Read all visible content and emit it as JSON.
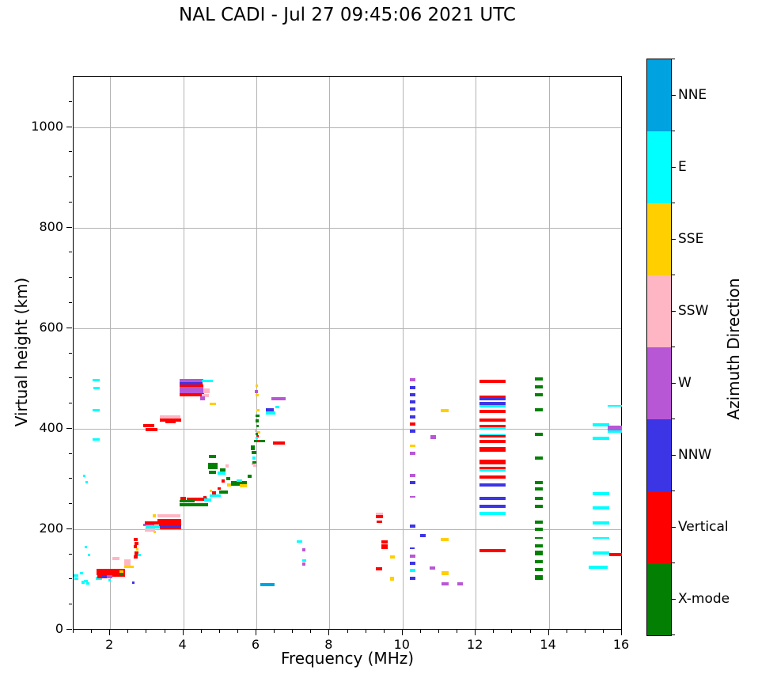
{
  "chart_data": {
    "type": "scatter",
    "title": "NAL CADI - Jul 27 09:45:06 2021 UTC",
    "xlabel": "Frequency (MHz)",
    "ylabel": "Virtual height (km)",
    "xlim": [
      1,
      16
    ],
    "ylim": [
      0,
      1100
    ],
    "xticks": [
      2,
      4,
      6,
      8,
      10,
      12,
      14,
      16
    ],
    "yticks": [
      0,
      200,
      400,
      600,
      800,
      1000
    ],
    "x_minor_step": 0.5,
    "y_minor_step": 50,
    "grid": true,
    "legend_position": "right-colorbar",
    "colorbar": {
      "label": "Azimuth Direction",
      "categories": [
        {
          "key": "NNE",
          "label": "NNE",
          "color": "#00A3E0"
        },
        {
          "key": "E",
          "label": "E",
          "color": "#00FFFF"
        },
        {
          "key": "SSE",
          "label": "SSE",
          "color": "#FFCF00"
        },
        {
          "key": "SSW",
          "label": "SSW",
          "color": "#FFB6C4"
        },
        {
          "key": "W",
          "label": "W",
          "color": "#B857D6"
        },
        {
          "key": "NNW",
          "label": "NNW",
          "color": "#3C35E5"
        },
        {
          "key": "V",
          "label": "Vertical",
          "color": "#FF0000"
        },
        {
          "key": "X",
          "label": "X-mode",
          "color": "#038003"
        }
      ]
    },
    "point_format": [
      "category",
      "freq_start_MHz",
      "freq_width_MHz",
      "virtual_height_km",
      "thickness_px"
    ],
    "points": [
      [
        "E",
        1.0,
        0.12,
        108,
        3
      ],
      [
        "E",
        1.02,
        0.1,
        101,
        3
      ],
      [
        "E",
        1.17,
        0.09,
        113,
        3
      ],
      [
        "E",
        1.21,
        0.1,
        95,
        4
      ],
      [
        "E",
        1.28,
        0.12,
        97,
        3
      ],
      [
        "E",
        1.35,
        0.08,
        92,
        3
      ],
      [
        "E",
        1.3,
        0.06,
        164,
        3
      ],
      [
        "E",
        1.4,
        0.06,
        148,
        3
      ],
      [
        "E",
        1.26,
        0.06,
        306,
        3
      ],
      [
        "E",
        1.32,
        0.06,
        293,
        3
      ],
      [
        "E",
        1.53,
        0.18,
        497,
        3
      ],
      [
        "E",
        1.55,
        0.16,
        480,
        3
      ],
      [
        "E",
        1.53,
        0.18,
        437,
        3
      ],
      [
        "E",
        1.53,
        0.18,
        378,
        3
      ],
      [
        "E",
        1.6,
        0.18,
        103,
        4
      ],
      [
        "V",
        1.62,
        0.78,
        118,
        5
      ],
      [
        "V",
        1.62,
        0.78,
        112,
        5
      ],
      [
        "V",
        1.66,
        0.38,
        106,
        4
      ],
      [
        "V",
        2.0,
        0.4,
        109,
        4
      ],
      [
        "NNW",
        1.78,
        0.13,
        107,
        3
      ],
      [
        "W",
        1.9,
        0.17,
        105,
        4
      ],
      [
        "E",
        1.95,
        0.06,
        99,
        3
      ],
      [
        "SSE",
        2.25,
        0.12,
        116,
        3
      ],
      [
        "X",
        2.27,
        0.07,
        111,
        3
      ],
      [
        "SSW",
        2.05,
        0.2,
        142,
        4
      ],
      [
        "SSW",
        2.38,
        0.17,
        135,
        6
      ],
      [
        "SSW",
        2.38,
        0.17,
        128,
        5
      ],
      [
        "SSE",
        2.38,
        0.27,
        125,
        3
      ],
      [
        "V",
        2.64,
        0.12,
        180,
        4
      ],
      [
        "V",
        2.66,
        0.12,
        172,
        4
      ],
      [
        "V",
        2.64,
        0.1,
        165,
        4
      ],
      [
        "V",
        2.67,
        0.1,
        152,
        5
      ],
      [
        "V",
        2.64,
        0.12,
        144,
        4
      ],
      [
        "SSE",
        2.7,
        0.08,
        159,
        3
      ],
      [
        "E",
        2.76,
        0.07,
        148,
        3
      ],
      [
        "NNW",
        2.6,
        0.06,
        94,
        3
      ],
      [
        "W",
        2.9,
        0.3,
        209,
        3
      ],
      [
        "E",
        2.97,
        0.4,
        204,
        4
      ],
      [
        "SSW",
        2.94,
        0.3,
        199,
        4
      ],
      [
        "V",
        2.95,
        0.55,
        212,
        4
      ],
      [
        "SSE",
        3.17,
        0.08,
        226,
        4
      ],
      [
        "SSE",
        3.18,
        0.07,
        194,
        3
      ],
      [
        "SSW",
        3.3,
        0.62,
        226,
        4
      ],
      [
        "V",
        3.3,
        0.64,
        217,
        5
      ],
      [
        "V",
        3.33,
        0.62,
        210,
        4
      ],
      [
        "NNW",
        3.35,
        0.6,
        206,
        3
      ],
      [
        "V",
        3.35,
        0.6,
        202,
        3
      ],
      [
        "V",
        2.9,
        0.3,
        406,
        4
      ],
      [
        "V",
        2.97,
        0.33,
        398,
        4
      ],
      [
        "SSW",
        3.35,
        0.58,
        423,
        4
      ],
      [
        "V",
        3.35,
        0.6,
        417,
        4
      ],
      [
        "V",
        3.5,
        0.3,
        413,
        3
      ],
      [
        "W",
        3.9,
        0.65,
        496,
        4
      ],
      [
        "E",
        4.5,
        0.3,
        495,
        3
      ],
      [
        "NNW",
        3.9,
        0.62,
        489,
        5
      ],
      [
        "V",
        3.9,
        0.64,
        485,
        3
      ],
      [
        "W",
        3.9,
        0.66,
        478,
        7
      ],
      [
        "W",
        3.9,
        0.68,
        471,
        4
      ],
      [
        "V",
        3.9,
        0.68,
        467,
        4
      ],
      [
        "SSW",
        4.55,
        0.18,
        476,
        6
      ],
      [
        "SSW",
        4.5,
        0.2,
        466,
        4
      ],
      [
        "W",
        4.47,
        0.12,
        460,
        5
      ],
      [
        "V",
        4.45,
        0.08,
        487,
        3
      ],
      [
        "SSE",
        4.73,
        0.17,
        450,
        3
      ],
      [
        "V",
        3.92,
        0.15,
        262,
        4
      ],
      [
        "V",
        4.1,
        0.55,
        259,
        4
      ],
      [
        "X",
        3.9,
        0.42,
        255,
        3
      ],
      [
        "X",
        3.9,
        0.78,
        249,
        4
      ],
      [
        "E",
        4.57,
        0.2,
        258,
        4
      ],
      [
        "V",
        4.55,
        0.08,
        263,
        3
      ],
      [
        "E",
        4.73,
        0.3,
        267,
        3
      ],
      [
        "V",
        4.78,
        0.12,
        272,
        4
      ],
      [
        "SSE",
        4.72,
        0.07,
        276,
        3
      ],
      [
        "X",
        4.98,
        0.25,
        274,
        4
      ],
      [
        "V",
        4.95,
        0.07,
        281,
        3
      ],
      [
        "X",
        4.7,
        0.2,
        345,
        4
      ],
      [
        "X",
        4.68,
        0.25,
        325,
        8
      ],
      [
        "X",
        4.7,
        0.2,
        313,
        4
      ],
      [
        "X",
        5.0,
        0.15,
        318,
        4
      ],
      [
        "E",
        4.95,
        0.2,
        311,
        4
      ],
      [
        "SSW",
        5.15,
        0.1,
        325,
        4
      ],
      [
        "V",
        5.05,
        0.08,
        296,
        4
      ],
      [
        "X",
        5.17,
        0.12,
        300,
        4
      ],
      [
        "SSE",
        5.2,
        0.1,
        288,
        4
      ],
      [
        "X",
        5.3,
        0.45,
        291,
        6
      ],
      [
        "SSE",
        5.55,
        0.2,
        286,
        4
      ],
      [
        "E",
        5.45,
        0.15,
        296,
        3
      ],
      [
        "X",
        5.77,
        0.1,
        306,
        4
      ],
      [
        "SSW",
        5.88,
        0.08,
        330,
        3
      ],
      [
        "X",
        5.85,
        0.1,
        362,
        6
      ],
      [
        "X",
        5.87,
        0.12,
        352,
        4
      ],
      [
        "E",
        5.9,
        0.08,
        341,
        4
      ],
      [
        "X",
        5.9,
        0.1,
        333,
        3
      ],
      [
        "SSW",
        5.92,
        0.08,
        327,
        3
      ],
      [
        "X",
        5.93,
        0.3,
        375,
        3
      ],
      [
        "X",
        5.98,
        0.1,
        425,
        3
      ],
      [
        "X",
        5.98,
        0.08,
        415,
        4
      ],
      [
        "X",
        5.99,
        0.07,
        405,
        3
      ],
      [
        "SSE",
        5.97,
        0.08,
        486,
        3
      ],
      [
        "W",
        5.95,
        0.1,
        473,
        4
      ],
      [
        "SSE",
        5.98,
        0.08,
        466,
        3
      ],
      [
        "SSE",
        6.0,
        0.08,
        436,
        3
      ],
      [
        "SSW",
        5.95,
        0.06,
        396,
        3
      ],
      [
        "SSE",
        6.02,
        0.08,
        393,
        3
      ],
      [
        "V",
        6.0,
        0.06,
        385,
        3
      ],
      [
        "X",
        5.97,
        0.08,
        389,
        3
      ],
      [
        "E",
        5.98,
        0.07,
        381,
        3
      ],
      [
        "V",
        6.02,
        0.06,
        376,
        3
      ],
      [
        "NNW",
        6.25,
        0.22,
        437,
        4
      ],
      [
        "E",
        6.27,
        0.25,
        431,
        4
      ],
      [
        "E",
        6.52,
        0.1,
        443,
        3
      ],
      [
        "W",
        6.42,
        0.38,
        459,
        4
      ],
      [
        "V",
        6.45,
        0.33,
        371,
        4
      ],
      [
        "NNE",
        6.1,
        0.4,
        90,
        4
      ],
      [
        "E",
        7.1,
        0.16,
        176,
        3
      ],
      [
        "W",
        7.26,
        0.08,
        159,
        4
      ],
      [
        "E",
        7.26,
        0.1,
        138,
        3
      ],
      [
        "W",
        7.25,
        0.1,
        131,
        4
      ],
      [
        "SSW",
        9.26,
        0.2,
        230,
        3
      ],
      [
        "V",
        9.26,
        0.2,
        225,
        4
      ],
      [
        "V",
        9.28,
        0.17,
        215,
        3
      ],
      [
        "V",
        9.42,
        0.17,
        175,
        4
      ],
      [
        "V",
        9.42,
        0.18,
        166,
        6
      ],
      [
        "SSE",
        9.65,
        0.14,
        145,
        4
      ],
      [
        "V",
        9.26,
        0.18,
        121,
        4
      ],
      [
        "SSE",
        9.65,
        0.12,
        102,
        5
      ],
      [
        "W",
        10.2,
        0.16,
        497,
        4
      ],
      [
        "NNW",
        10.2,
        0.16,
        482,
        4
      ],
      [
        "NNW",
        10.2,
        0.16,
        468,
        4
      ],
      [
        "NNW",
        10.2,
        0.16,
        453,
        4
      ],
      [
        "NNW",
        10.2,
        0.16,
        439,
        4
      ],
      [
        "NNW",
        10.2,
        0.16,
        424,
        4
      ],
      [
        "V",
        10.2,
        0.16,
        409,
        4
      ],
      [
        "NNW",
        10.2,
        0.16,
        395,
        4
      ],
      [
        "SSE",
        10.2,
        0.16,
        366,
        3
      ],
      [
        "W",
        10.2,
        0.16,
        351,
        4
      ],
      [
        "W",
        10.2,
        0.16,
        307,
        4
      ],
      [
        "NNW",
        10.2,
        0.16,
        293,
        4
      ],
      [
        "W",
        10.2,
        0.15,
        264,
        2
      ],
      [
        "NNW",
        10.2,
        0.16,
        206,
        4
      ],
      [
        "NNW",
        10.2,
        0.12,
        162,
        2
      ],
      [
        "W",
        10.2,
        0.15,
        147,
        4
      ],
      [
        "NNW",
        10.2,
        0.16,
        132,
        4
      ],
      [
        "E",
        10.2,
        0.16,
        118,
        4
      ],
      [
        "NNW",
        10.2,
        0.16,
        103,
        4
      ],
      [
        "NNW",
        10.48,
        0.16,
        187,
        4
      ],
      [
        "W",
        10.76,
        0.16,
        383,
        5
      ],
      [
        "W",
        10.75,
        0.15,
        122,
        4
      ],
      [
        "SSE",
        11.05,
        0.22,
        436,
        4
      ],
      [
        "SSE",
        11.05,
        0.22,
        179,
        4
      ],
      [
        "SSE",
        11.07,
        0.2,
        112,
        5
      ],
      [
        "W",
        11.07,
        0.2,
        91,
        4
      ],
      [
        "W",
        11.5,
        0.14,
        91,
        4
      ],
      [
        "V",
        12.1,
        0.72,
        494,
        4
      ],
      [
        "V",
        12.1,
        0.72,
        463,
        4
      ],
      [
        "NNW",
        12.1,
        0.72,
        459,
        3
      ],
      [
        "NNW",
        12.1,
        0.72,
        449,
        5
      ],
      [
        "E",
        12.1,
        0.72,
        444,
        3
      ],
      [
        "V",
        12.1,
        0.72,
        434,
        4
      ],
      [
        "V",
        12.1,
        0.72,
        417,
        4
      ],
      [
        "V",
        12.1,
        0.72,
        405,
        3
      ],
      [
        "E",
        12.1,
        0.72,
        401,
        3
      ],
      [
        "E",
        12.1,
        0.72,
        387,
        3
      ],
      [
        "V",
        12.1,
        0.72,
        384,
        3
      ],
      [
        "V",
        12.1,
        0.72,
        375,
        4
      ],
      [
        "V",
        12.1,
        0.72,
        359,
        6
      ],
      [
        "V",
        12.1,
        0.72,
        333,
        6
      ],
      [
        "V",
        12.1,
        0.72,
        321,
        4
      ],
      [
        "E",
        12.1,
        0.72,
        317,
        3
      ],
      [
        "V",
        12.1,
        0.72,
        303,
        4
      ],
      [
        "NNW",
        12.1,
        0.72,
        288,
        4
      ],
      [
        "NNW",
        12.1,
        0.72,
        261,
        4
      ],
      [
        "NNW",
        12.1,
        0.72,
        245,
        4
      ],
      [
        "E",
        12.1,
        0.72,
        232,
        4
      ],
      [
        "V",
        12.1,
        0.72,
        158,
        4
      ],
      [
        "X",
        13.62,
        0.22,
        499,
        4
      ],
      [
        "X",
        13.62,
        0.22,
        483,
        4
      ],
      [
        "X",
        13.62,
        0.22,
        468,
        4
      ],
      [
        "X",
        13.62,
        0.22,
        437,
        4
      ],
      [
        "X",
        13.62,
        0.22,
        389,
        4
      ],
      [
        "X",
        13.62,
        0.22,
        341,
        4
      ],
      [
        "X",
        13.62,
        0.22,
        293,
        4
      ],
      [
        "X",
        13.62,
        0.22,
        280,
        4
      ],
      [
        "X",
        13.62,
        0.22,
        262,
        4
      ],
      [
        "X",
        13.62,
        0.22,
        246,
        4
      ],
      [
        "X",
        13.62,
        0.22,
        214,
        4
      ],
      [
        "X",
        13.62,
        0.22,
        200,
        4
      ],
      [
        "X",
        13.62,
        0.22,
        182,
        2
      ],
      [
        "X",
        13.62,
        0.22,
        167,
        4
      ],
      [
        "X",
        13.62,
        0.22,
        152,
        6
      ],
      [
        "X",
        13.62,
        0.22,
        135,
        4
      ],
      [
        "X",
        13.62,
        0.22,
        120,
        4
      ],
      [
        "X",
        13.62,
        0.22,
        104,
        6
      ],
      [
        "E",
        15.62,
        0.38,
        445,
        2
      ],
      [
        "E",
        15.2,
        0.45,
        408,
        4
      ],
      [
        "W",
        15.62,
        0.38,
        404,
        3
      ],
      [
        "W",
        15.62,
        0.38,
        398,
        5
      ],
      [
        "E",
        15.62,
        0.38,
        394,
        3
      ],
      [
        "E",
        15.2,
        0.45,
        381,
        4
      ],
      [
        "E",
        15.2,
        0.45,
        270,
        4
      ],
      [
        "E",
        15.2,
        0.45,
        242,
        4
      ],
      [
        "E",
        15.2,
        0.45,
        212,
        4
      ],
      [
        "E",
        15.2,
        0.45,
        183,
        2
      ],
      [
        "E",
        15.2,
        0.45,
        152,
        4
      ],
      [
        "V",
        15.65,
        0.35,
        150,
        4
      ],
      [
        "E",
        15.1,
        0.5,
        124,
        4
      ]
    ]
  }
}
